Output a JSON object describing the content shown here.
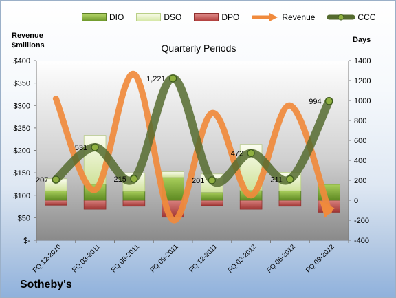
{
  "legend": {
    "dio": "DIO",
    "dso": "DSO",
    "dpo": "DPO",
    "revenue": "Revenue",
    "ccc": "CCC"
  },
  "company": "Sotheby's",
  "chart_data": {
    "type": "bar",
    "title": "Quarterly Periods",
    "ylabel_left": "Revenue $millions",
    "ylabel_right": "Days",
    "categories": [
      "FQ 12-2010",
      "FQ 03-2011",
      "FQ 06-2011",
      "FQ 09-2011",
      "FQ 12-2011",
      "FQ 03-2012",
      "FQ 06-2012",
      "FQ 09-2012"
    ],
    "y_left": {
      "min": 0,
      "max": 400,
      "ticks": [
        0,
        50,
        100,
        150,
        200,
        250,
        300,
        350,
        400
      ],
      "tick_labels": [
        "$-",
        "$50",
        "$100",
        "$150",
        "$200",
        "$250",
        "$300",
        "$350",
        "$400"
      ]
    },
    "y_right": {
      "min": -400,
      "max": 1400,
      "ticks": [
        -400,
        -200,
        0,
        200,
        400,
        600,
        800,
        1000,
        1200,
        1400
      ],
      "tick_labels": [
        "-400",
        "-200",
        "0",
        "200",
        "400",
        "600",
        "800",
        "1000",
        "1200",
        "1400"
      ]
    },
    "grid": false,
    "series": [
      {
        "name": "DIO",
        "axis": "right",
        "kind": "bar",
        "values": [
          95,
          160,
          90,
          230,
          80,
          100,
          95,
          160
        ]
      },
      {
        "name": "DSO",
        "axis": "right",
        "kind": "bar",
        "values": [
          120,
          490,
          185,
          55,
          183,
          460,
          185,
          0
        ]
      },
      {
        "name": "DPO",
        "axis": "right",
        "kind": "bar",
        "values": [
          -50,
          -90,
          -60,
          -170,
          -55,
          -90,
          -60,
          -120
        ]
      },
      {
        "name": "Revenue",
        "axis": "left",
        "kind": "line",
        "values": [
          315,
          112,
          370,
          45,
          283,
          100,
          300,
          65
        ]
      },
      {
        "name": "CCC",
        "axis": "right",
        "kind": "line",
        "values": [
          207,
          531,
          215,
          1221,
          201,
          472,
          211,
          994
        ]
      }
    ],
    "ccc_labels": [
      "207",
      "531",
      "215",
      "1,221",
      "201",
      "472",
      "211",
      "994"
    ]
  }
}
